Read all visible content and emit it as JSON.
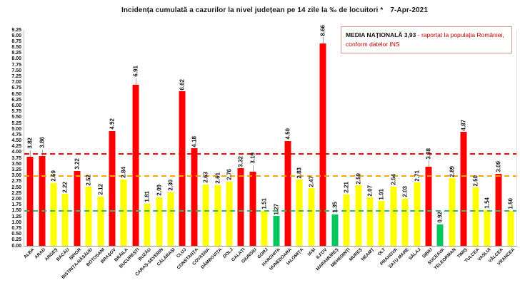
{
  "title_main": "Incidența cumulată a cazurilor la nivel județean pe 14 zile la ‰ de locuitori *",
  "title_date": "7-Apr-2021",
  "legend": {
    "bold_text": "MEDIA NAȚIONALĂ  3,93 ",
    "red_text": "- raportat la populația României, conform datelor INS",
    "border_color": "#d99694",
    "text_color": "#c00000"
  },
  "chart_data": {
    "type": "bar",
    "title": "Incidența cumulată a cazurilor la nivel județean pe 14 zile la ‰ de locuitori * 7-Apr-2021",
    "xlabel": "",
    "ylabel": "",
    "ylim": [
      0,
      9.25
    ],
    "y_tick_step": 0.25,
    "grid": false,
    "legend_position": "top-right",
    "categories": [
      "ALBA",
      "ARAD",
      "ARGEȘ",
      "BACĂU",
      "BIHOR",
      "BISTRIȚA-NĂSĂUD",
      "BOTOȘANI",
      "BRAȘOV",
      "BRĂILA",
      "BUCUREȘTI",
      "BUZĂU",
      "CARAȘ-SEVERIN",
      "CĂLĂRAȘI",
      "CLUJ",
      "CONSTANȚA",
      "COVASNA",
      "DÂMBOVIȚA",
      "DOLJ",
      "GALAȚI",
      "GIURGIU",
      "GORJ",
      "HARGHITA",
      "HUNEDOARA",
      "IALOMIȚA",
      "IAȘI",
      "ILFOV",
      "MARAMUREȘ",
      "MEHEDINȚI",
      "MUREȘ",
      "NEAMȚ",
      "OLT",
      "PRAHOVA",
      "SATU MARE",
      "SĂLAJ",
      "SIBIU",
      "SUCEAVA",
      "TELEORMAN",
      "TIMIȘ",
      "TULCEA",
      "VASLUI",
      "VÂLCEA",
      "VRANCEA"
    ],
    "values": [
      3.82,
      3.86,
      2.69,
      2.22,
      3.22,
      2.52,
      2.12,
      4.92,
      2.84,
      6.91,
      1.81,
      2.09,
      2.3,
      6.62,
      4.18,
      2.63,
      2.61,
      2.76,
      3.32,
      3.19,
      1.51,
      1.27,
      4.5,
      2.83,
      2.47,
      8.66,
      1.35,
      2.21,
      2.59,
      2.07,
      1.91,
      2.54,
      2.03,
      2.71,
      3.38,
      0.92,
      2.89,
      4.87,
      2.5,
      1.54,
      3.09,
      1.5
    ],
    "bar_colors": [
      "red",
      "red",
      "yellow",
      "yellow",
      "red",
      "yellow",
      "yellow",
      "red",
      "yellow",
      "red",
      "yellow",
      "yellow",
      "yellow",
      "red",
      "red",
      "yellow",
      "yellow",
      "yellow",
      "red",
      "red",
      "yellow",
      "green",
      "red",
      "yellow",
      "yellow",
      "red",
      "green",
      "yellow",
      "yellow",
      "yellow",
      "yellow",
      "yellow",
      "yellow",
      "yellow",
      "red",
      "green",
      "yellow",
      "red",
      "yellow",
      "yellow",
      "red",
      "yellow"
    ],
    "palette": {
      "red": "#fe0000",
      "yellow": "#ffff00",
      "green": "#00c85c"
    },
    "reference_lines": [
      {
        "value": 3.93,
        "color": "#fe0000",
        "meaning": "media națională"
      },
      {
        "value": 3.0,
        "color": "#ffa500",
        "meaning": "prag roșu"
      },
      {
        "value": 1.5,
        "color": "#3cb371",
        "meaning": "prag galben"
      }
    ],
    "label_leader_indices": [
      0,
      1,
      9,
      19,
      25,
      34
    ]
  }
}
